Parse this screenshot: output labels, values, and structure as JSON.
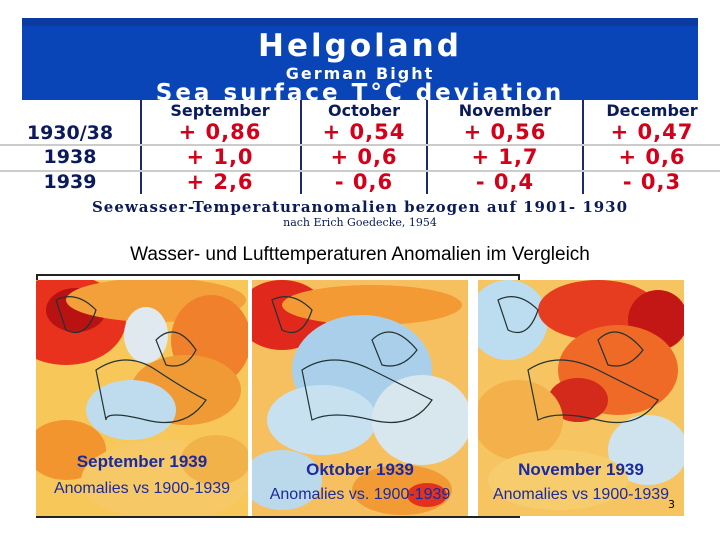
{
  "banner": {
    "title": "Helgoland",
    "subtitle": "German Bight",
    "heading": "Sea surface T°C deviation"
  },
  "table": {
    "months": [
      "September",
      "October",
      "November",
      "December"
    ],
    "rows": [
      {
        "label": "1930/38",
        "values": [
          "+ 0,86",
          "+ 0,54",
          "+ 0,56",
          "+ 0,47"
        ]
      },
      {
        "label": "1938",
        "values": [
          "+ 1,0",
          "+ 0,6",
          "+ 1,7",
          "+ 0,6"
        ]
      },
      {
        "label": "1939",
        "values": [
          "+ 2,6",
          "- 0,6",
          "- 0,4",
          "- 0,3"
        ]
      }
    ]
  },
  "captions": {
    "main": "Seewasser-Temperaturanomalien bezogen auf 1901- 1930",
    "source": "nach Erich Goedecke, 1954"
  },
  "section_title": "Wasser- und Lufttemperaturen Anomalien im Vergleich",
  "maps": [
    {
      "month": "September 1939",
      "anomalies": "Anomalies vs 1900-1939"
    },
    {
      "month": "Oktober 1939",
      "anomalies": "Anomalies vs. 1900-1939"
    },
    {
      "month": "November 1939",
      "anomalies": "Anomalies vs 1900-1939"
    }
  ],
  "page_number": "3"
}
